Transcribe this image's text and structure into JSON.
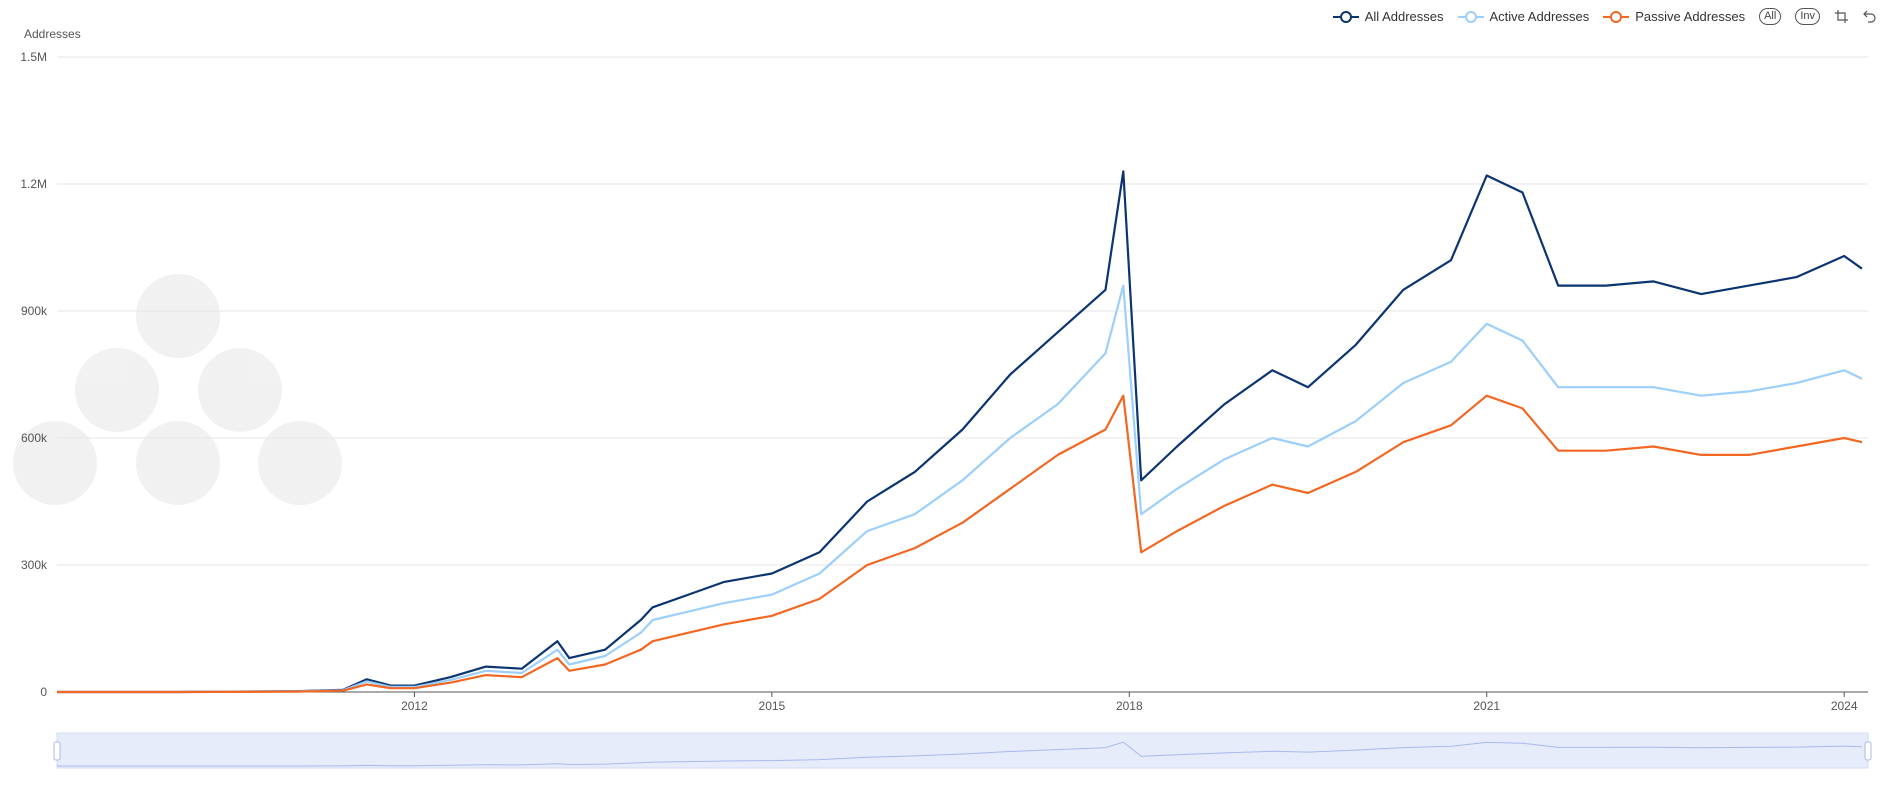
{
  "legend": {
    "all_label": "All Addresses",
    "active_label": "Active Addresses",
    "passive_label": "Passive Addresses",
    "btn_all": "All",
    "btn_inv": "Inv"
  },
  "colors": {
    "all": "#0b3470",
    "active": "#9ccffb",
    "passive": "#f26722",
    "grid": "#e6e6e6",
    "axis": "#999999",
    "brush_fill": "#e7ecfb",
    "brush_line": "#a8b9ee"
  },
  "chart_data": {
    "type": "line",
    "ylabel": "Addresses",
    "y_ticks": [
      "0",
      "300k",
      "600k",
      "900k",
      "1.2M",
      "1.5M"
    ],
    "ylim": [
      0,
      1500000
    ],
    "xlim": [
      2009.0,
      2024.2
    ],
    "x_ticks": [
      "2012",
      "2015",
      "2018",
      "2021",
      "2024"
    ],
    "x_tick_values": [
      2012,
      2015,
      2018,
      2021,
      2024
    ],
    "x": [
      2009.0,
      2010.0,
      2011.0,
      2011.4,
      2011.6,
      2011.8,
      2012.0,
      2012.3,
      2012.6,
      2012.9,
      2013.2,
      2013.3,
      2013.6,
      2013.9,
      2014.0,
      2014.3,
      2014.6,
      2015.0,
      2015.4,
      2015.8,
      2016.2,
      2016.6,
      2017.0,
      2017.4,
      2017.8,
      2017.95,
      2018.1,
      2018.4,
      2018.8,
      2019.2,
      2019.5,
      2019.9,
      2020.3,
      2020.7,
      2021.0,
      2021.3,
      2021.6,
      2022.0,
      2022.4,
      2022.8,
      2023.2,
      2023.6,
      2024.0,
      2024.15
    ],
    "series": [
      {
        "name": "All Addresses",
        "values": [
          0,
          0,
          2000,
          5000,
          30000,
          15000,
          15000,
          35000,
          60000,
          55000,
          120000,
          80000,
          100000,
          170000,
          200000,
          230000,
          260000,
          280000,
          330000,
          450000,
          520000,
          620000,
          750000,
          850000,
          950000,
          1230000,
          500000,
          580000,
          680000,
          760000,
          720000,
          820000,
          950000,
          1020000,
          1220000,
          1180000,
          960000,
          960000,
          970000,
          940000,
          960000,
          980000,
          1030000,
          1000000
        ]
      },
      {
        "name": "Active Addresses",
        "values": [
          0,
          0,
          1500,
          4000,
          25000,
          12000,
          12000,
          28000,
          50000,
          45000,
          100000,
          65000,
          85000,
          140000,
          170000,
          190000,
          210000,
          230000,
          280000,
          380000,
          420000,
          500000,
          600000,
          680000,
          800000,
          960000,
          420000,
          480000,
          550000,
          600000,
          580000,
          640000,
          730000,
          780000,
          870000,
          830000,
          720000,
          720000,
          720000,
          700000,
          710000,
          730000,
          760000,
          740000
        ]
      },
      {
        "name": "Passive Addresses",
        "values": [
          0,
          0,
          1000,
          3000,
          18000,
          9000,
          9000,
          22000,
          40000,
          35000,
          80000,
          50000,
          65000,
          100000,
          120000,
          140000,
          160000,
          180000,
          220000,
          300000,
          340000,
          400000,
          480000,
          560000,
          620000,
          700000,
          330000,
          380000,
          440000,
          490000,
          470000,
          520000,
          590000,
          630000,
          700000,
          670000,
          570000,
          570000,
          580000,
          560000,
          560000,
          580000,
          600000,
          590000
        ]
      }
    ],
    "grid": true,
    "legend_position": "top-right"
  }
}
